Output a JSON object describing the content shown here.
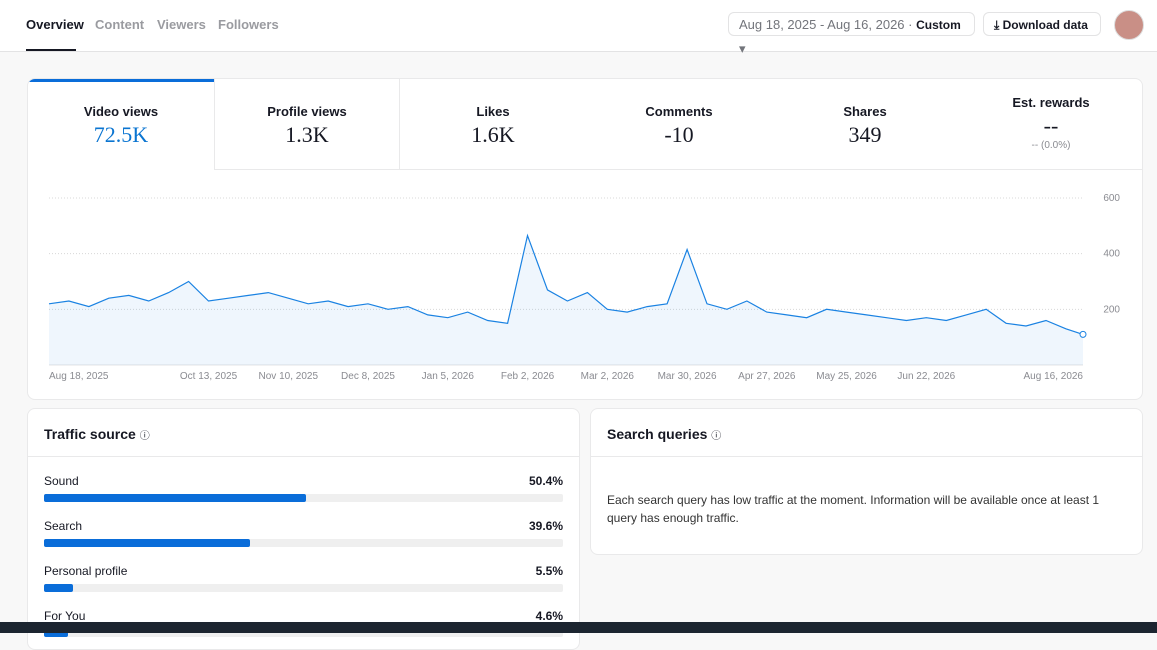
{
  "tabs": [
    "Overview",
    "Content",
    "Viewers",
    "Followers"
  ],
  "date_range": "Aug 18, 2025 - Aug 16, 2026",
  "range_mode": "Custom",
  "download": "Download data",
  "metrics": [
    {
      "label": "Video views",
      "value": "72.5K"
    },
    {
      "label": "Profile views",
      "value": "1.3K"
    },
    {
      "label": "Likes",
      "value": "1.6K"
    },
    {
      "label": "Comments",
      "value": "-10"
    },
    {
      "label": "Shares",
      "value": "349"
    },
    {
      "label": "Est. rewards",
      "value": "--",
      "sub": "-- (0.0%)"
    }
  ],
  "chart_data": {
    "type": "area",
    "color": "#1a82e2",
    "x": [
      "2025-08-18",
      "2025-08-25",
      "2025-09-01",
      "2025-09-08",
      "2025-09-15",
      "2025-09-22",
      "2025-09-29",
      "2025-10-06",
      "2025-10-13",
      "2025-10-20",
      "2025-10-27",
      "2025-11-03",
      "2025-11-10",
      "2025-11-17",
      "2025-11-24",
      "2025-12-01",
      "2025-12-08",
      "2025-12-15",
      "2025-12-22",
      "2025-12-29",
      "2026-01-05",
      "2026-01-12",
      "2026-01-19",
      "2026-01-26",
      "2026-02-02",
      "2026-02-09",
      "2026-02-16",
      "2026-02-23",
      "2026-03-02",
      "2026-03-09",
      "2026-03-16",
      "2026-03-23",
      "2026-03-30",
      "2026-04-06",
      "2026-04-13",
      "2026-04-20",
      "2026-04-27",
      "2026-05-04",
      "2026-05-11",
      "2026-05-18",
      "2026-05-25",
      "2026-06-01",
      "2026-06-08",
      "2026-06-15",
      "2026-06-22",
      "2026-06-29",
      "2026-07-06",
      "2026-07-13",
      "2026-07-20",
      "2026-07-27",
      "2026-08-03",
      "2026-08-10",
      "2026-08-16"
    ],
    "values": [
      220,
      230,
      210,
      240,
      250,
      230,
      260,
      300,
      230,
      240,
      250,
      260,
      240,
      220,
      230,
      210,
      220,
      200,
      210,
      180,
      170,
      190,
      160,
      150,
      465,
      270,
      230,
      260,
      200,
      190,
      210,
      220,
      415,
      220,
      200,
      230,
      190,
      180,
      170,
      200,
      190,
      180,
      170,
      160,
      170,
      160,
      180,
      200,
      150,
      140,
      160,
      130,
      110
    ],
    "xlim": [
      "2025-08-18",
      "2026-08-16"
    ],
    "xticks": [
      {
        "value": "2025-08-18",
        "label": "Aug 18, 2025"
      },
      {
        "value": "2025-10-13",
        "label": "Oct 13, 2025"
      },
      {
        "value": "2025-11-10",
        "label": "Nov 10, 2025"
      },
      {
        "value": "2025-12-08",
        "label": "Dec 8, 2025"
      },
      {
        "value": "2026-01-05",
        "label": "Jan 5, 2026"
      },
      {
        "value": "2026-02-02",
        "label": "Feb 2, 2026"
      },
      {
        "value": "2026-03-02",
        "label": "Mar 2, 2026"
      },
      {
        "value": "2026-03-30",
        "label": "Mar 30, 2026"
      },
      {
        "value": "2026-04-27",
        "label": "Apr 27, 2026"
      },
      {
        "value": "2026-05-25",
        "label": "May 25, 2026"
      },
      {
        "value": "2026-06-22",
        "label": "Jun 22, 2026"
      },
      {
        "value": "2026-08-16",
        "label": "Aug 16, 2026"
      }
    ],
    "ylim": [
      0,
      600
    ],
    "yticks": [
      200,
      400,
      600
    ],
    "grid": true
  },
  "traffic_source": {
    "title": "Traffic source",
    "categories": [
      "Sound",
      "Search",
      "Personal profile",
      "For You"
    ],
    "values": [
      50.4,
      39.6,
      5.5,
      4.6
    ],
    "value_labels": [
      "50.4%",
      "39.6%",
      "5.5%",
      "4.6%"
    ],
    "xlim": [
      0,
      100
    ],
    "color": "#0a6dd9"
  },
  "search_queries": {
    "title": "Search queries",
    "message": "Each search query has low traffic at the moment. Information will be available once at least 1 query has enough traffic."
  }
}
